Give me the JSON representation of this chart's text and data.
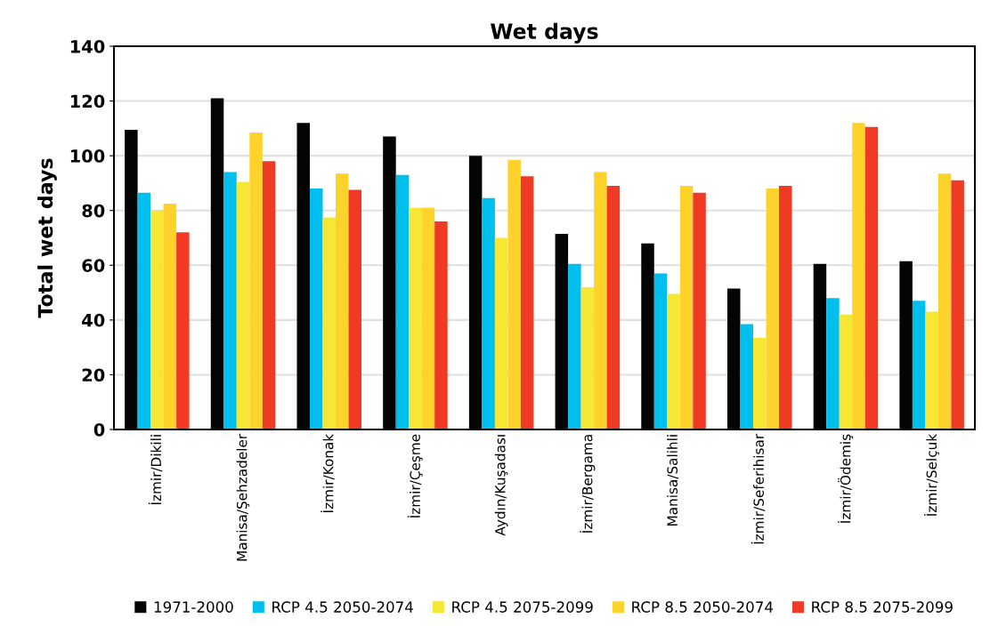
{
  "chart_data": {
    "type": "bar",
    "title": "Wet days",
    "ylabel": "Total wet days",
    "categories": [
      "İzmir/Dikili",
      "Manisa/Şehzadeler",
      "İzmir/Konak",
      "İzmir/Çeşme",
      "Aydın/Kuşadası",
      "İzmir/Bergama",
      "Manisa/Salihli",
      "İzmir/Seferihisar",
      "İzmir/Ödemiş",
      "İzmir/Selçuk"
    ],
    "series": [
      {
        "name": "1971-2000",
        "color": "#040404",
        "values": [
          109.5,
          121,
          112,
          107,
          100,
          71.5,
          68,
          51.5,
          60.5,
          61.5
        ]
      },
      {
        "name": "RCP 4.5 2050-2074",
        "color": "#00bfee",
        "values": [
          86.5,
          94,
          88,
          93,
          84.5,
          60.5,
          57,
          38.5,
          48,
          47
        ]
      },
      {
        "name": "RCP 4.5 2075-2099",
        "color": "#f5e733",
        "values": [
          80,
          90.5,
          77.5,
          81,
          70,
          52,
          49.5,
          33.5,
          42,
          43
        ]
      },
      {
        "name": "RCP 8.5 2050-2074",
        "color": "#fdd22a",
        "values": [
          82.5,
          108.5,
          93.5,
          81,
          98.5,
          94,
          89,
          88,
          112,
          93.5
        ]
      },
      {
        "name": "RCP 8.5 2075-2099",
        "color": "#ef3a26",
        "values": [
          72,
          98,
          87.5,
          76,
          92.5,
          89,
          86.5,
          89,
          110.5,
          91
        ]
      }
    ],
    "ylim": [
      0,
      140
    ],
    "yticks": [
      0,
      20,
      40,
      60,
      80,
      100,
      120,
      140
    ],
    "grid": "y",
    "legend": "bottom"
  }
}
